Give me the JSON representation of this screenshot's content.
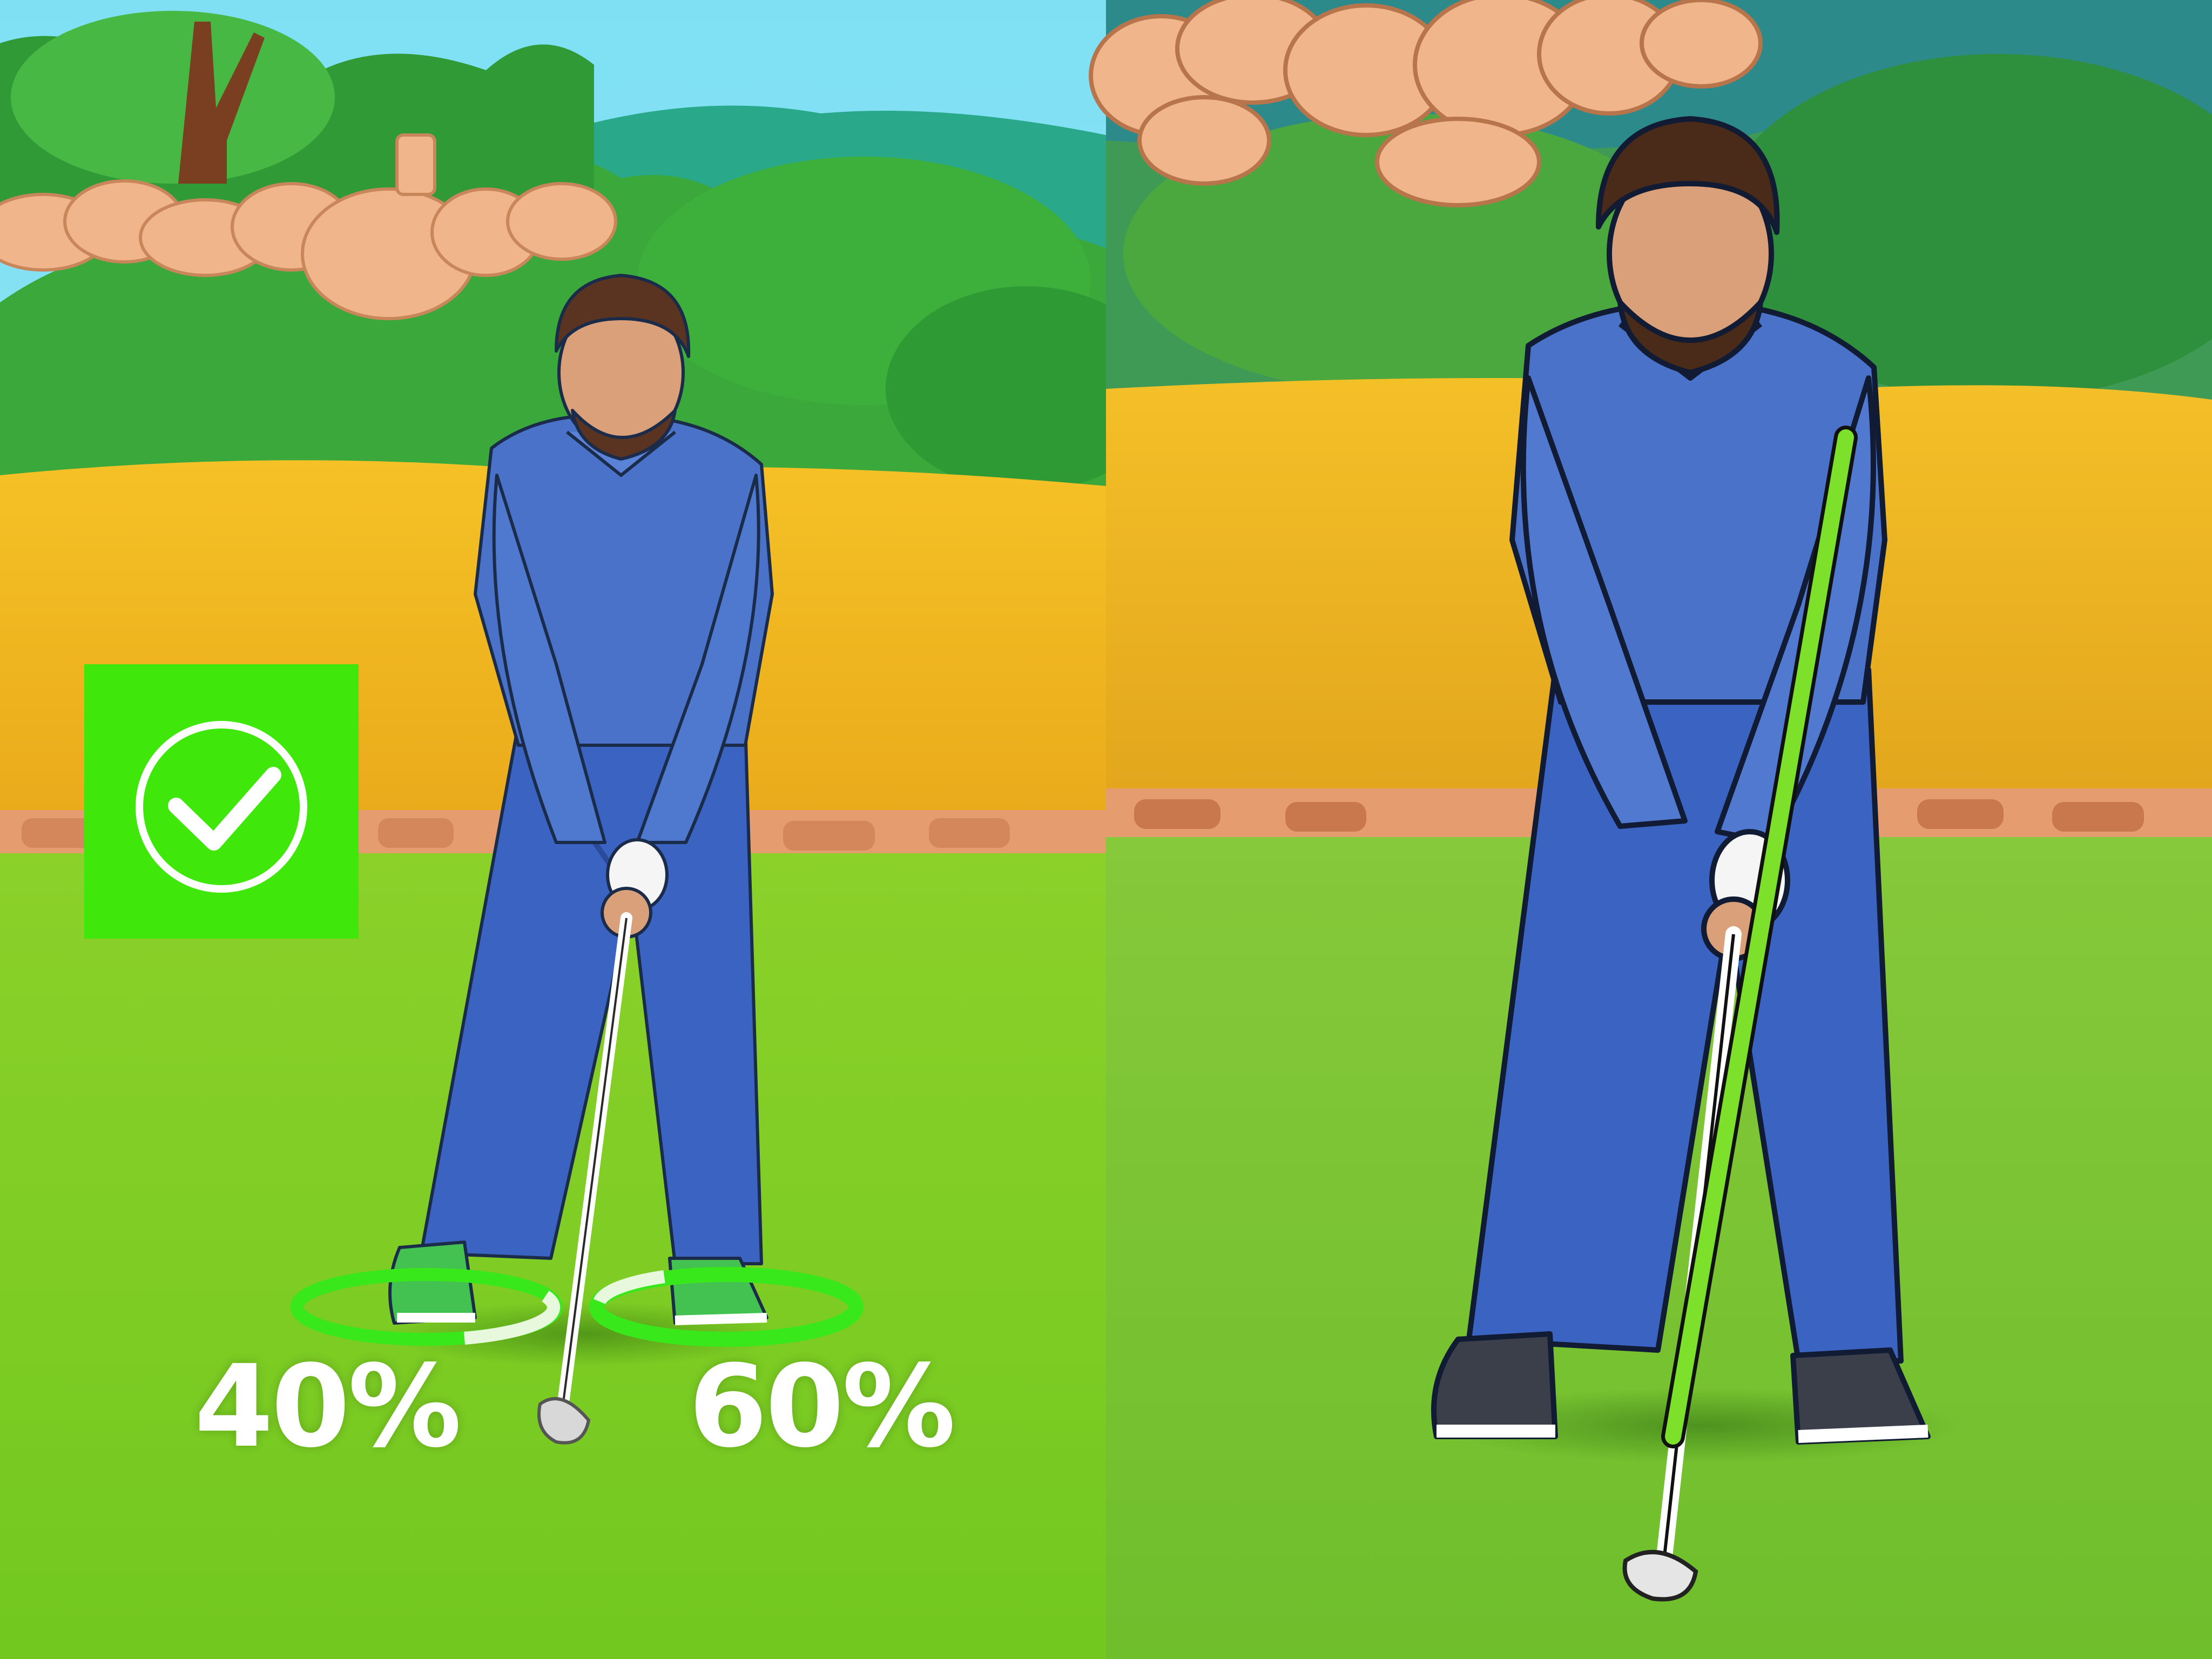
{
  "panels": [
    {
      "id": "left",
      "check_badge": {
        "icon": "checkmark-circle-icon",
        "color": "#3fe80a"
      },
      "weight_distribution": [
        {
          "foot": "left",
          "label": "40%",
          "value": 40
        },
        {
          "foot": "right",
          "label": "60%",
          "value": 60
        }
      ],
      "ring_color": "#38e81a"
    },
    {
      "id": "right",
      "alignment_stick": {
        "color": "#7de02a"
      }
    }
  ],
  "colors": {
    "sky": "#6fd6f0",
    "grass": "#7ccf28",
    "sand": "#f2b41e",
    "shirt": "#4a72c9",
    "pants": "#3a63c2",
    "accent_green": "#3fe80a"
  }
}
